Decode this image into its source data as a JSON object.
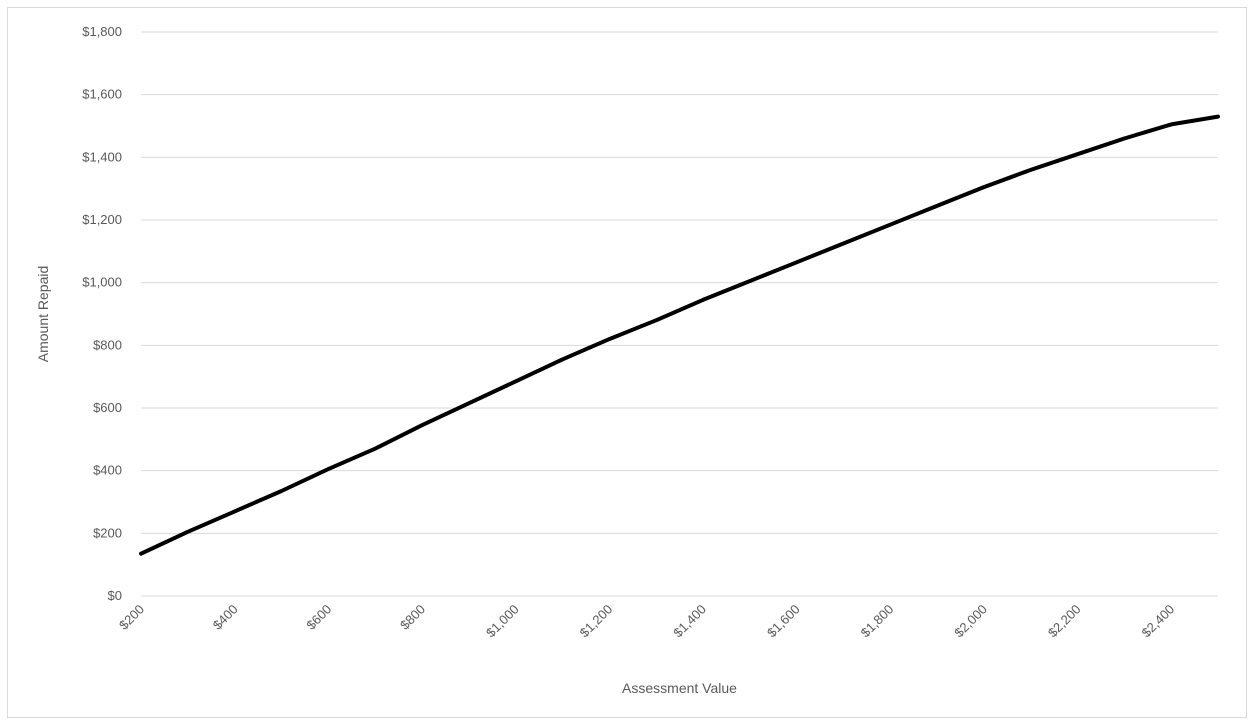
{
  "chart_data": {
    "type": "line",
    "xlabel": "Assessment Value",
    "ylabel": "Amount Repaid",
    "xlim": [
      200,
      2500
    ],
    "ylim": [
      0,
      1800
    ],
    "x_ticks": [
      200,
      400,
      600,
      800,
      1000,
      1200,
      1400,
      1600,
      1800,
      2000,
      2200,
      2400
    ],
    "x_tick_labels": [
      "$200",
      "$400",
      "$600",
      "$800",
      "$1,000",
      "$1,200",
      "$1,400",
      "$1,600",
      "$1,800",
      "$2,000",
      "$2,200",
      "$2,400"
    ],
    "y_ticks": [
      0,
      200,
      400,
      600,
      800,
      1000,
      1200,
      1400,
      1600,
      1800
    ],
    "y_tick_labels": [
      "$0",
      "$200",
      "$400",
      "$600",
      "$800",
      "$1,000",
      "$1,200",
      "$1,400",
      "$1,600",
      "$1,800"
    ],
    "grid": "horizontal",
    "legend": "none",
    "line_color": "#000000",
    "series": [
      {
        "x": [
          200,
          300,
          400,
          500,
          600,
          700,
          800,
          900,
          1000,
          1100,
          1200,
          1300,
          1400,
          1500,
          1600,
          1700,
          1800,
          1900,
          2000,
          2100,
          2200,
          2300,
          2400,
          2500
        ],
        "values": [
          135,
          205,
          270,
          335,
          405,
          470,
          545,
          615,
          685,
          755,
          820,
          880,
          945,
          1005,
          1065,
          1125,
          1185,
          1245,
          1305,
          1360,
          1410,
          1460,
          1505,
          1530
        ]
      }
    ]
  }
}
